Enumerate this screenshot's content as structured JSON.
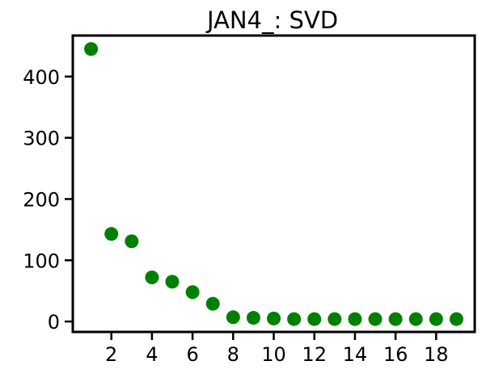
{
  "chart_data": {
    "type": "scatter",
    "title": "JAN4_: SVD",
    "xlabel": "",
    "ylabel": "",
    "x": [
      1,
      2,
      3,
      4,
      5,
      6,
      7,
      8,
      9,
      10,
      11,
      12,
      13,
      14,
      15,
      16,
      17,
      18,
      19
    ],
    "y": [
      445,
      143,
      131,
      72,
      65,
      48,
      29,
      7,
      6,
      5,
      4,
      4,
      4,
      4,
      4,
      4,
      4,
      4,
      4
    ],
    "xlim": [
      0.1,
      19.9
    ],
    "ylim": [
      -17,
      467
    ],
    "xticks": [
      2,
      4,
      6,
      8,
      10,
      12,
      14,
      16,
      18
    ],
    "yticks": [
      0,
      100,
      200,
      300,
      400
    ],
    "grid": false,
    "marker_color": "#008000"
  }
}
